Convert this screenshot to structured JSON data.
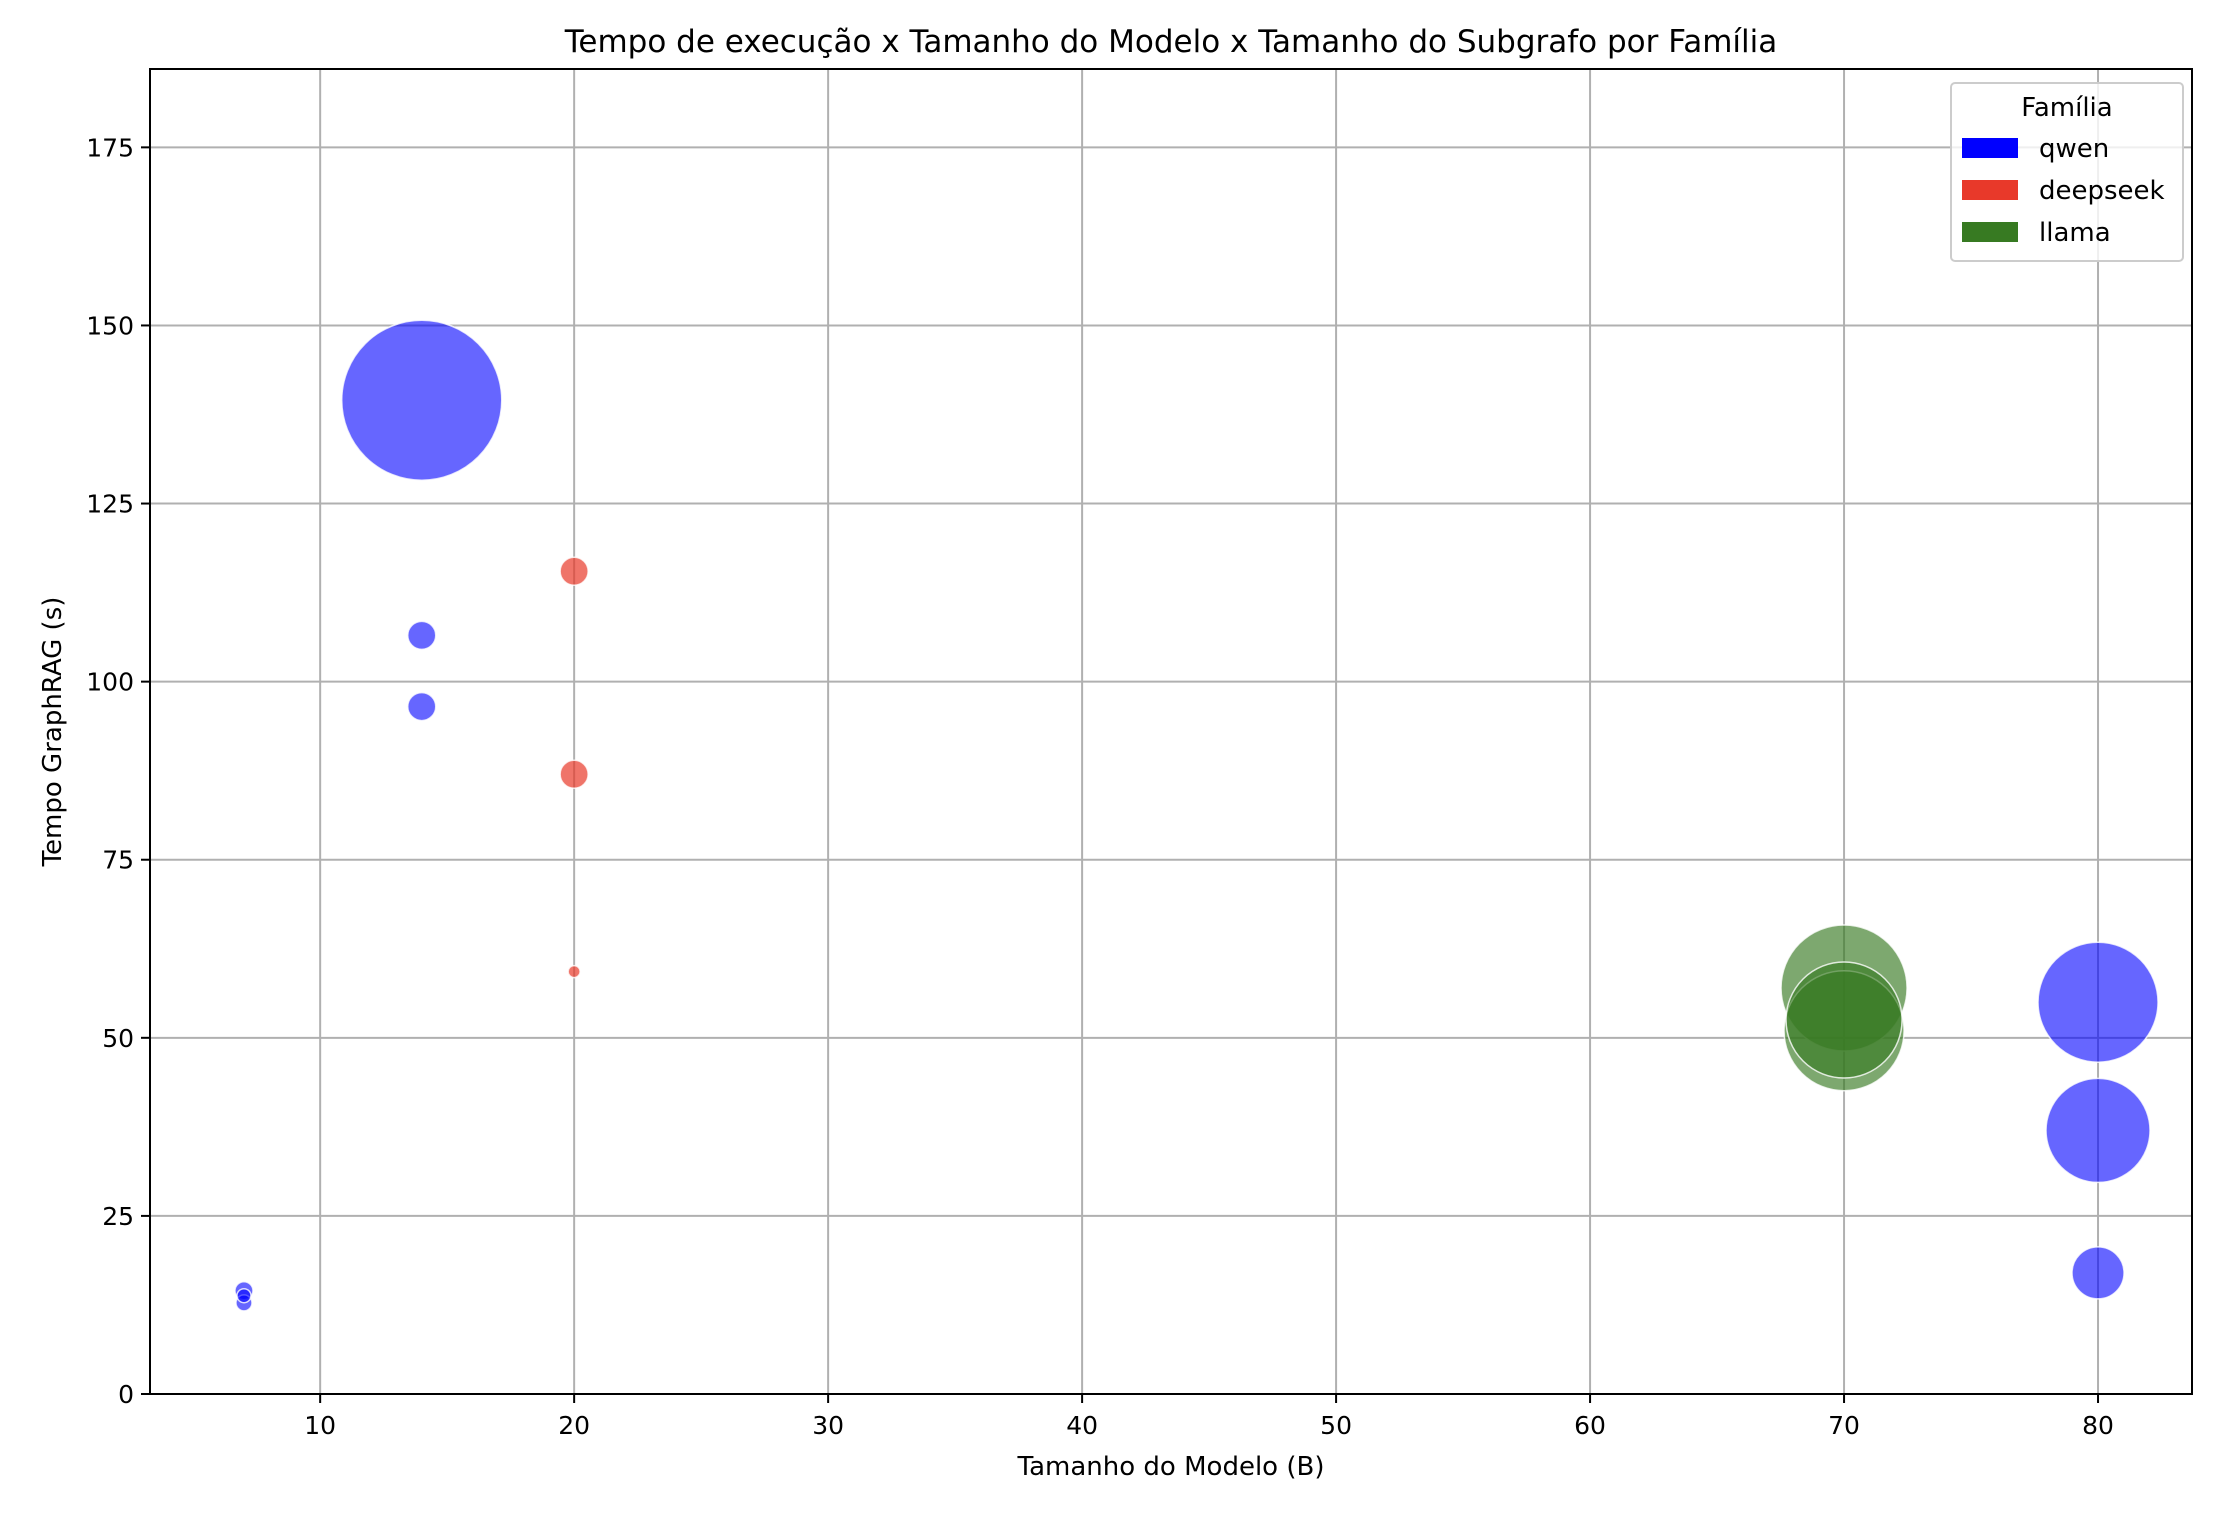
{
  "chart_data": {
    "type": "scatter",
    "title": "Tempo de execução x Tamanho do Modelo x Tamanho do Subgrafo por Família",
    "xlabel": "Tamanho do Modelo (B)",
    "ylabel": "Tempo GraphRAG (s)",
    "xlim": [
      3.3,
      83.7
    ],
    "ylim": [
      0,
      186
    ],
    "xticks": [
      10,
      20,
      30,
      40,
      50,
      60,
      70,
      80
    ],
    "yticks": [
      0,
      25,
      50,
      75,
      100,
      125,
      150,
      175
    ],
    "grid": true,
    "legend": {
      "title": "Família",
      "placement": "top-right",
      "entries": [
        {
          "label": "qwen",
          "color": "#0000ff"
        },
        {
          "label": "deepseek",
          "color": "#e8392a"
        },
        {
          "label": "llama",
          "color": "#377a22"
        }
      ]
    },
    "series": [
      {
        "name": "qwen",
        "color": "#0000ff",
        "alpha": 0.6,
        "points": [
          {
            "x": 7,
            "y": 14.5,
            "size": 9
          },
          {
            "x": 7,
            "y": 12.8,
            "size": 8
          },
          {
            "x": 7,
            "y": 13.8,
            "size": 7
          },
          {
            "x": 14,
            "y": 139.5,
            "size": 80
          },
          {
            "x": 14,
            "y": 106.5,
            "size": 14
          },
          {
            "x": 14,
            "y": 96.5,
            "size": 14
          },
          {
            "x": 80,
            "y": 55,
            "size": 60
          },
          {
            "x": 80,
            "y": 37,
            "size": 52
          },
          {
            "x": 80,
            "y": 17,
            "size": 26
          }
        ]
      },
      {
        "name": "deepseek",
        "color": "#e8392a",
        "alpha": 0.7,
        "points": [
          {
            "x": 20,
            "y": 115.5,
            "size": 14
          },
          {
            "x": 20,
            "y": 87,
            "size": 14
          },
          {
            "x": 20,
            "y": 59.3,
            "size": 6
          }
        ]
      },
      {
        "name": "llama",
        "color": "#377a22",
        "alpha": 0.65,
        "points": [
          {
            "x": 70,
            "y": 57,
            "size": 63
          },
          {
            "x": 70,
            "y": 51,
            "size": 60
          },
          {
            "x": 70,
            "y": 52.5,
            "size": 58
          }
        ]
      }
    ]
  }
}
